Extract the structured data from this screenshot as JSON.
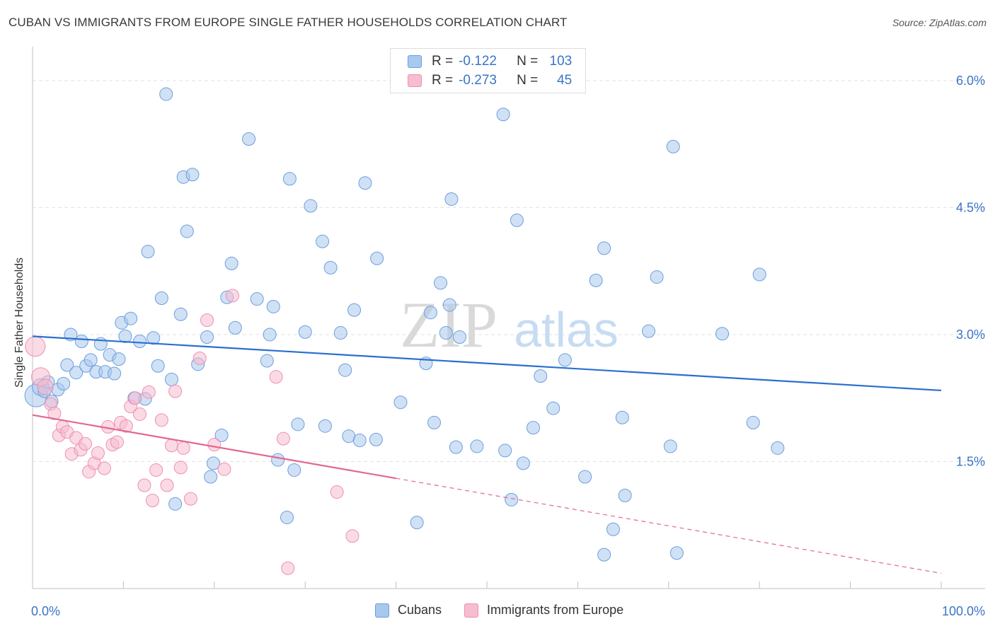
{
  "header": {
    "title": "CUBAN VS IMMIGRANTS FROM EUROPE SINGLE FATHER HOUSEHOLDS CORRELATION CHART",
    "source": "Source: ZipAtlas.com"
  },
  "legend_top": {
    "rows": [
      {
        "r_label": "R =",
        "r_value": "-0.122",
        "n_label": "N =",
        "n_value": "103"
      },
      {
        "r_label": "R =",
        "r_value": "-0.273",
        "n_label": "N =",
        "n_value": "45"
      }
    ]
  },
  "legend_bottom": {
    "items": [
      {
        "label": "Cubans"
      },
      {
        "label": "Immigrants from Europe"
      }
    ]
  },
  "watermark": {
    "zip": "ZIP",
    "atlas": "atlas"
  },
  "colors": {
    "blue_fill": "#a9c8ee",
    "blue_stroke": "#6a9fdc",
    "blue_line": "#2a6fcf",
    "pink_fill": "#f6bcd0",
    "pink_stroke": "#ee8fb0",
    "pink_line": "#e2678f",
    "tick_label": "#3a74c7",
    "grid": "#e2e2e2"
  },
  "chart_data": {
    "type": "scatter",
    "title": "CUBAN VS IMMIGRANTS FROM EUROPE SINGLE FATHER HOUSEHOLDS CORRELATION CHART",
    "xlabel": "",
    "ylabel": "Single Father Households",
    "xlim": [
      0,
      100
    ],
    "ylim": [
      0,
      6.3
    ],
    "x_tick_labels": [
      "0.0%",
      "100.0%"
    ],
    "y_ticks": [
      1.5,
      3.0,
      4.5,
      6.0
    ],
    "y_tick_labels": [
      "1.5%",
      "3.0%",
      "4.5%",
      "6.0%"
    ],
    "series": [
      {
        "name": "Cubans",
        "R": -0.122,
        "N": 103,
        "trend": {
          "x": [
            0,
            100
          ],
          "y": [
            2.98,
            2.34
          ],
          "solid_to": 100
        },
        "points": [
          [
            0.4,
            2.28,
            16
          ],
          [
            0.9,
            2.38,
            12
          ],
          [
            1.3,
            2.33,
            9
          ],
          [
            1.7,
            2.44,
            9
          ],
          [
            2.1,
            2.21,
            9
          ],
          [
            2.8,
            2.35,
            9
          ],
          [
            3.4,
            2.42,
            9
          ],
          [
            3.8,
            2.64,
            9
          ],
          [
            4.2,
            3.0,
            9
          ],
          [
            4.8,
            2.55,
            9
          ],
          [
            5.4,
            2.92,
            9
          ],
          [
            5.9,
            2.63,
            9
          ],
          [
            6.4,
            2.7,
            9
          ],
          [
            7.0,
            2.56,
            9
          ],
          [
            7.5,
            2.89,
            9
          ],
          [
            8.0,
            2.56,
            9
          ],
          [
            8.5,
            2.76,
            9
          ],
          [
            9.0,
            2.54,
            9
          ],
          [
            9.5,
            2.71,
            9
          ],
          [
            9.8,
            3.14,
            9
          ],
          [
            10.2,
            2.98,
            9
          ],
          [
            10.8,
            3.19,
            9
          ],
          [
            11.2,
            2.25,
            9
          ],
          [
            11.8,
            2.92,
            9
          ],
          [
            12.4,
            2.24,
            9
          ],
          [
            12.7,
            3.98,
            9
          ],
          [
            13.3,
            2.96,
            9
          ],
          [
            13.8,
            2.63,
            9
          ],
          [
            14.2,
            3.43,
            9
          ],
          [
            14.7,
            5.84,
            9
          ],
          [
            15.3,
            2.47,
            9
          ],
          [
            15.7,
            1.0,
            9
          ],
          [
            16.3,
            3.24,
            9
          ],
          [
            16.6,
            4.86,
            9
          ],
          [
            17.0,
            4.22,
            9
          ],
          [
            17.6,
            4.89,
            9
          ],
          [
            18.2,
            2.65,
            9
          ],
          [
            19.2,
            2.97,
            9
          ],
          [
            19.6,
            1.32,
            9
          ],
          [
            19.9,
            1.48,
            9
          ],
          [
            20.8,
            1.81,
            9
          ],
          [
            21.4,
            3.44,
            9
          ],
          [
            21.9,
            3.84,
            9
          ],
          [
            22.3,
            3.08,
            9
          ],
          [
            23.8,
            5.31,
            9
          ],
          [
            24.7,
            3.42,
            9
          ],
          [
            25.8,
            2.69,
            9
          ],
          [
            26.1,
            3.0,
            9
          ],
          [
            26.5,
            3.33,
            9
          ],
          [
            27.0,
            1.52,
            9
          ],
          [
            28.0,
            0.84,
            9
          ],
          [
            28.3,
            4.84,
            9
          ],
          [
            28.8,
            1.4,
            9
          ],
          [
            29.2,
            1.94,
            9
          ],
          [
            30.0,
            3.03,
            9
          ],
          [
            30.6,
            4.52,
            9
          ],
          [
            31.9,
            4.1,
            9
          ],
          [
            32.2,
            1.92,
            9
          ],
          [
            32.8,
            3.79,
            9
          ],
          [
            33.9,
            3.02,
            9
          ],
          [
            34.4,
            2.58,
            9
          ],
          [
            34.8,
            1.8,
            9
          ],
          [
            35.4,
            3.29,
            9
          ],
          [
            36.0,
            1.75,
            9
          ],
          [
            36.6,
            4.79,
            9
          ],
          [
            37.8,
            1.76,
            9
          ],
          [
            37.9,
            3.9,
            9
          ],
          [
            40.5,
            2.2,
            9
          ],
          [
            42.3,
            0.78,
            9
          ],
          [
            43.3,
            2.66,
            9
          ],
          [
            43.8,
            3.26,
            9
          ],
          [
            44.2,
            1.96,
            9
          ],
          [
            44.9,
            3.61,
            9
          ],
          [
            45.5,
            3.02,
            9
          ],
          [
            45.9,
            3.35,
            9
          ],
          [
            46.1,
            4.6,
            9
          ],
          [
            46.6,
            1.67,
            9
          ],
          [
            47.0,
            2.97,
            9
          ],
          [
            48.9,
            1.68,
            9
          ],
          [
            51.8,
            5.6,
            9
          ],
          [
            52.0,
            1.63,
            9
          ],
          [
            52.7,
            1.05,
            9
          ],
          [
            53.3,
            4.35,
            9
          ],
          [
            54.0,
            1.48,
            9
          ],
          [
            55.1,
            1.9,
            9
          ],
          [
            55.9,
            2.51,
            9
          ],
          [
            57.3,
            2.13,
            9
          ],
          [
            58.6,
            2.7,
            9
          ],
          [
            60.8,
            1.32,
            9
          ],
          [
            62.0,
            3.64,
            9
          ],
          [
            62.9,
            0.4,
            9
          ],
          [
            62.9,
            4.02,
            9
          ],
          [
            63.9,
            0.7,
            9
          ],
          [
            64.9,
            2.02,
            9
          ],
          [
            65.2,
            1.1,
            9
          ],
          [
            67.8,
            3.04,
            9
          ],
          [
            68.7,
            3.68,
            9
          ],
          [
            70.2,
            1.68,
            9
          ],
          [
            70.5,
            5.22,
            9
          ],
          [
            70.9,
            0.42,
            9
          ],
          [
            75.9,
            3.01,
            9
          ],
          [
            79.3,
            1.96,
            9
          ],
          [
            80.0,
            3.71,
            9
          ],
          [
            82.0,
            1.66,
            9
          ]
        ]
      },
      {
        "name": "Immigrants from Europe",
        "R": -0.273,
        "N": 45,
        "trend": {
          "x": [
            0,
            100
          ],
          "y": [
            2.05,
            0.18
          ],
          "solid_to": 40
        },
        "points": [
          [
            0.3,
            2.86,
            14
          ],
          [
            0.9,
            2.5,
            13
          ],
          [
            1.4,
            2.38,
            11
          ],
          [
            2.0,
            2.18,
            9
          ],
          [
            2.4,
            2.07,
            9
          ],
          [
            2.9,
            1.81,
            9
          ],
          [
            3.3,
            1.91,
            9
          ],
          [
            3.8,
            1.85,
            9
          ],
          [
            4.3,
            1.59,
            9
          ],
          [
            4.8,
            1.78,
            9
          ],
          [
            5.3,
            1.64,
            9
          ],
          [
            5.8,
            1.71,
            9
          ],
          [
            6.2,
            1.38,
            9
          ],
          [
            6.8,
            1.48,
            9
          ],
          [
            7.2,
            1.6,
            9
          ],
          [
            7.9,
            1.42,
            9
          ],
          [
            8.3,
            1.91,
            9
          ],
          [
            8.8,
            1.7,
            9
          ],
          [
            9.3,
            1.73,
            9
          ],
          [
            9.7,
            1.96,
            9
          ],
          [
            10.3,
            1.92,
            9
          ],
          [
            10.8,
            2.15,
            9
          ],
          [
            11.3,
            2.25,
            9
          ],
          [
            11.8,
            2.06,
            9
          ],
          [
            12.3,
            1.22,
            9
          ],
          [
            12.8,
            2.32,
            9
          ],
          [
            13.2,
            1.04,
            9
          ],
          [
            13.6,
            1.4,
            9
          ],
          [
            14.2,
            1.99,
            9
          ],
          [
            14.8,
            1.22,
            9
          ],
          [
            15.3,
            1.69,
            9
          ],
          [
            15.7,
            2.33,
            9
          ],
          [
            16.3,
            1.43,
            9
          ],
          [
            16.6,
            1.66,
            9
          ],
          [
            17.4,
            1.06,
            9
          ],
          [
            18.4,
            2.72,
            9
          ],
          [
            19.2,
            3.17,
            9
          ],
          [
            20.0,
            1.7,
            9
          ],
          [
            21.1,
            1.41,
            9
          ],
          [
            22.0,
            3.46,
            9
          ],
          [
            26.8,
            2.5,
            9
          ],
          [
            27.6,
            1.77,
            9
          ],
          [
            28.1,
            0.24,
            9
          ],
          [
            33.5,
            1.14,
            9
          ],
          [
            35.2,
            0.62,
            9
          ]
        ]
      }
    ]
  }
}
